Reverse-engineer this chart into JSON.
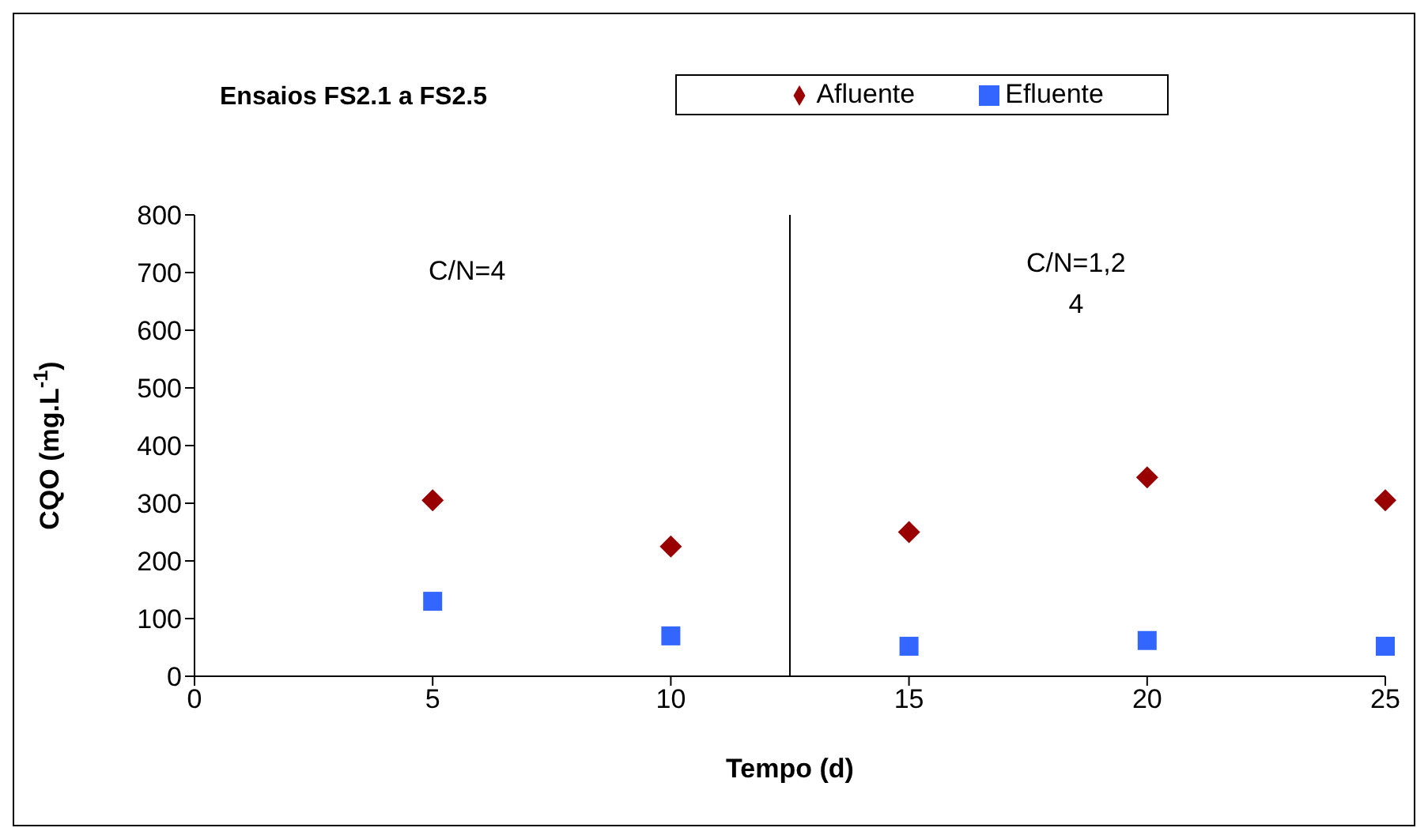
{
  "chart_data": {
    "type": "scatter",
    "title": "Ensaios FS2.1 a FS2.5",
    "xlabel": "Tempo (d)",
    "ylabel": "CQO (mg.L$^{-1}$)",
    "x": [
      5,
      10,
      15,
      20,
      25
    ],
    "series": [
      {
        "name": "Afluente",
        "color": "#990000",
        "marker": "diamond",
        "values": [
          305,
          225,
          250,
          345,
          305
        ]
      },
      {
        "name": "Efluente",
        "color": "#3366ff",
        "marker": "square",
        "values": [
          130,
          70,
          52,
          62,
          52
        ]
      }
    ],
    "xlim": [
      0,
      25
    ],
    "xticks": [
      0,
      5,
      10,
      15,
      20,
      25
    ],
    "ylim": [
      0,
      800
    ],
    "yticks": [
      0,
      100,
      200,
      300,
      400,
      500,
      600,
      700,
      800
    ],
    "grid": false,
    "legend": "top right",
    "ref_lines": [
      {
        "axis": "x",
        "value": 12.5,
        "color": "#000000"
      }
    ],
    "annotations": [
      "C/N=4",
      "C/N=1,2\n4"
    ]
  }
}
